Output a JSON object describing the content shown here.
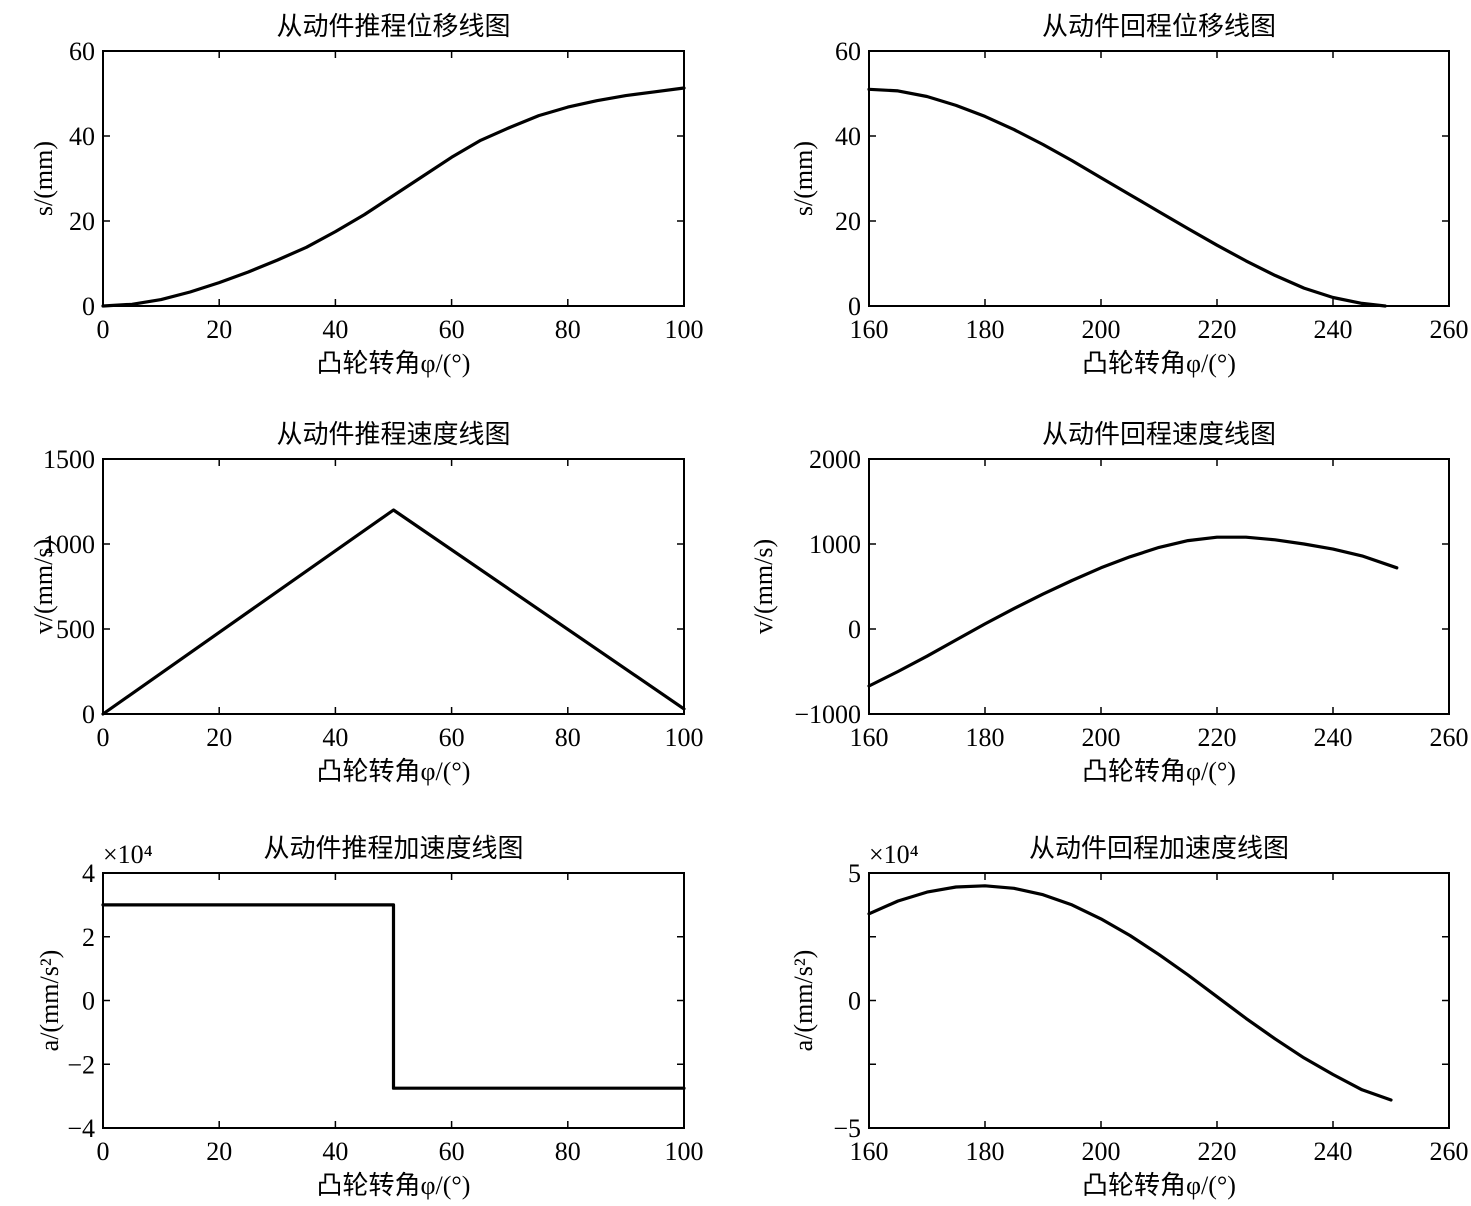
{
  "colors": {
    "line": "#000000",
    "background": "#ffffff"
  },
  "chart_data": [
    {
      "type": "line",
      "title": "从动件推程位移线图",
      "xlabel": "凸轮转角φ/(°)",
      "ylabel": "s/(mm)",
      "xlim": [
        0,
        100
      ],
      "ylim": [
        0,
        60
      ],
      "xticks": [
        0,
        20,
        40,
        60,
        80,
        100
      ],
      "yticks": [
        0,
        20,
        40,
        60
      ],
      "tick_labels_x": [
        "0",
        "20",
        "40",
        "60",
        "80",
        "100"
      ],
      "tick_labels_y": [
        "0",
        "20",
        "40",
        "60"
      ],
      "series": [
        {
          "x": [
            0,
            5,
            10,
            15,
            20,
            25,
            30,
            35,
            40,
            45,
            50,
            55,
            60,
            65,
            70,
            75,
            80,
            85,
            90,
            95,
            100
          ],
          "y": [
            0,
            0.4,
            1.5,
            3.3,
            5.5,
            8.0,
            10.8,
            13.8,
            17.5,
            21.5,
            26.0,
            30.5,
            35.0,
            39.0,
            42.0,
            44.8,
            46.8,
            48.3,
            49.5,
            50.4,
            51.3
          ]
        }
      ]
    },
    {
      "type": "line",
      "title": "从动件回程位移线图",
      "xlabel": "凸轮转角φ/(°)",
      "ylabel": "s/(mm)",
      "xlim": [
        160,
        260
      ],
      "ylim": [
        0,
        60
      ],
      "xticks": [
        160,
        180,
        200,
        220,
        240,
        260
      ],
      "yticks": [
        0,
        20,
        40,
        60
      ],
      "tick_labels_x": [
        "160",
        "180",
        "200",
        "220",
        "240",
        "260"
      ],
      "tick_labels_y": [
        "0",
        "20",
        "40",
        "60"
      ],
      "series": [
        {
          "x": [
            160,
            165,
            170,
            175,
            180,
            185,
            190,
            195,
            200,
            205,
            210,
            215,
            220,
            225,
            230,
            235,
            240,
            245,
            249
          ],
          "y": [
            51,
            50.6,
            49.3,
            47.2,
            44.6,
            41.5,
            38.0,
            34.2,
            30.2,
            26.2,
            22.2,
            18.2,
            14.3,
            10.6,
            7.2,
            4.2,
            2.0,
            0.6,
            0
          ]
        }
      ]
    },
    {
      "type": "line",
      "title": "从动件推程速度线图",
      "xlabel": "凸轮转角φ/(°)",
      "ylabel": "v/(mm/s)",
      "xlim": [
        0,
        100
      ],
      "ylim": [
        0,
        1500
      ],
      "xticks": [
        0,
        20,
        40,
        60,
        80,
        100
      ],
      "yticks": [
        0,
        500,
        1000,
        1500
      ],
      "tick_labels_x": [
        "0",
        "20",
        "40",
        "60",
        "80",
        "100"
      ],
      "tick_labels_y": [
        "0",
        "500",
        "1000",
        "1500"
      ],
      "series": [
        {
          "x": [
            0,
            50,
            100
          ],
          "y": [
            0,
            1200,
            30
          ]
        }
      ]
    },
    {
      "type": "line",
      "title": "从动件回程速度线图",
      "xlabel": "凸轮转角φ/(°)",
      "ylabel": "v/(mm/s)",
      "xlim": [
        160,
        260
      ],
      "ylim": [
        -1000,
        2000
      ],
      "xticks": [
        160,
        180,
        200,
        220,
        240,
        260
      ],
      "yticks": [
        -1000,
        0,
        1000,
        2000
      ],
      "tick_labels_x": [
        "160",
        "180",
        "200",
        "220",
        "240",
        "260"
      ],
      "tick_labels_y": [
        "−1000",
        "0",
        "1000",
        "2000"
      ],
      "series": [
        {
          "x": [
            160,
            165,
            170,
            175,
            180,
            185,
            190,
            195,
            200,
            205,
            210,
            215,
            220,
            225,
            230,
            235,
            240,
            245,
            251
          ],
          "y": [
            -670,
            -500,
            -320,
            -130,
            60,
            240,
            410,
            570,
            720,
            850,
            960,
            1040,
            1080,
            1080,
            1050,
            1000,
            940,
            860,
            720
          ]
        }
      ]
    },
    {
      "type": "line",
      "title": "从动件推程加速度线图",
      "xlabel": "凸轮转角φ/(°)",
      "ylabel": "a/(mm/s²)",
      "scale_note": "×10⁴",
      "xlim": [
        0,
        100
      ],
      "ylim": [
        -4,
        4
      ],
      "xticks": [
        0,
        20,
        40,
        60,
        80,
        100
      ],
      "yticks": [
        -4,
        -2,
        0,
        2,
        4
      ],
      "tick_labels_x": [
        "0",
        "20",
        "40",
        "60",
        "80",
        "100"
      ],
      "tick_labels_y": [
        "−4",
        "−2",
        "0",
        "2",
        "4"
      ],
      "series": [
        {
          "x": [
            0,
            50,
            50,
            100
          ],
          "y": [
            3,
            3,
            -2.75,
            -2.75
          ]
        }
      ]
    },
    {
      "type": "line",
      "title": "从动件回程加速度线图",
      "xlabel": "凸轮转角φ/(°)",
      "ylabel": "a/(mm/s²)",
      "scale_note": "×10⁴",
      "xlim": [
        160,
        260
      ],
      "ylim": [
        -5,
        5
      ],
      "xticks": [
        160,
        180,
        200,
        220,
        240,
        260
      ],
      "yticks": [
        -5,
        -2.5,
        0,
        2.5,
        5
      ],
      "tick_labels_x": [
        "160",
        "180",
        "200",
        "220",
        "240",
        "260"
      ],
      "tick_labels_y": [
        "−5",
        "",
        "0",
        "",
        "5"
      ],
      "series": [
        {
          "x": [
            160,
            165,
            170,
            175,
            180,
            185,
            190,
            195,
            200,
            205,
            210,
            215,
            220,
            225,
            230,
            235,
            240,
            245,
            250
          ],
          "y": [
            3.4,
            3.9,
            4.25,
            4.45,
            4.5,
            4.4,
            4.15,
            3.75,
            3.2,
            2.55,
            1.8,
            1.0,
            0.15,
            -0.7,
            -1.5,
            -2.25,
            -2.9,
            -3.5,
            -3.9
          ]
        }
      ]
    }
  ]
}
